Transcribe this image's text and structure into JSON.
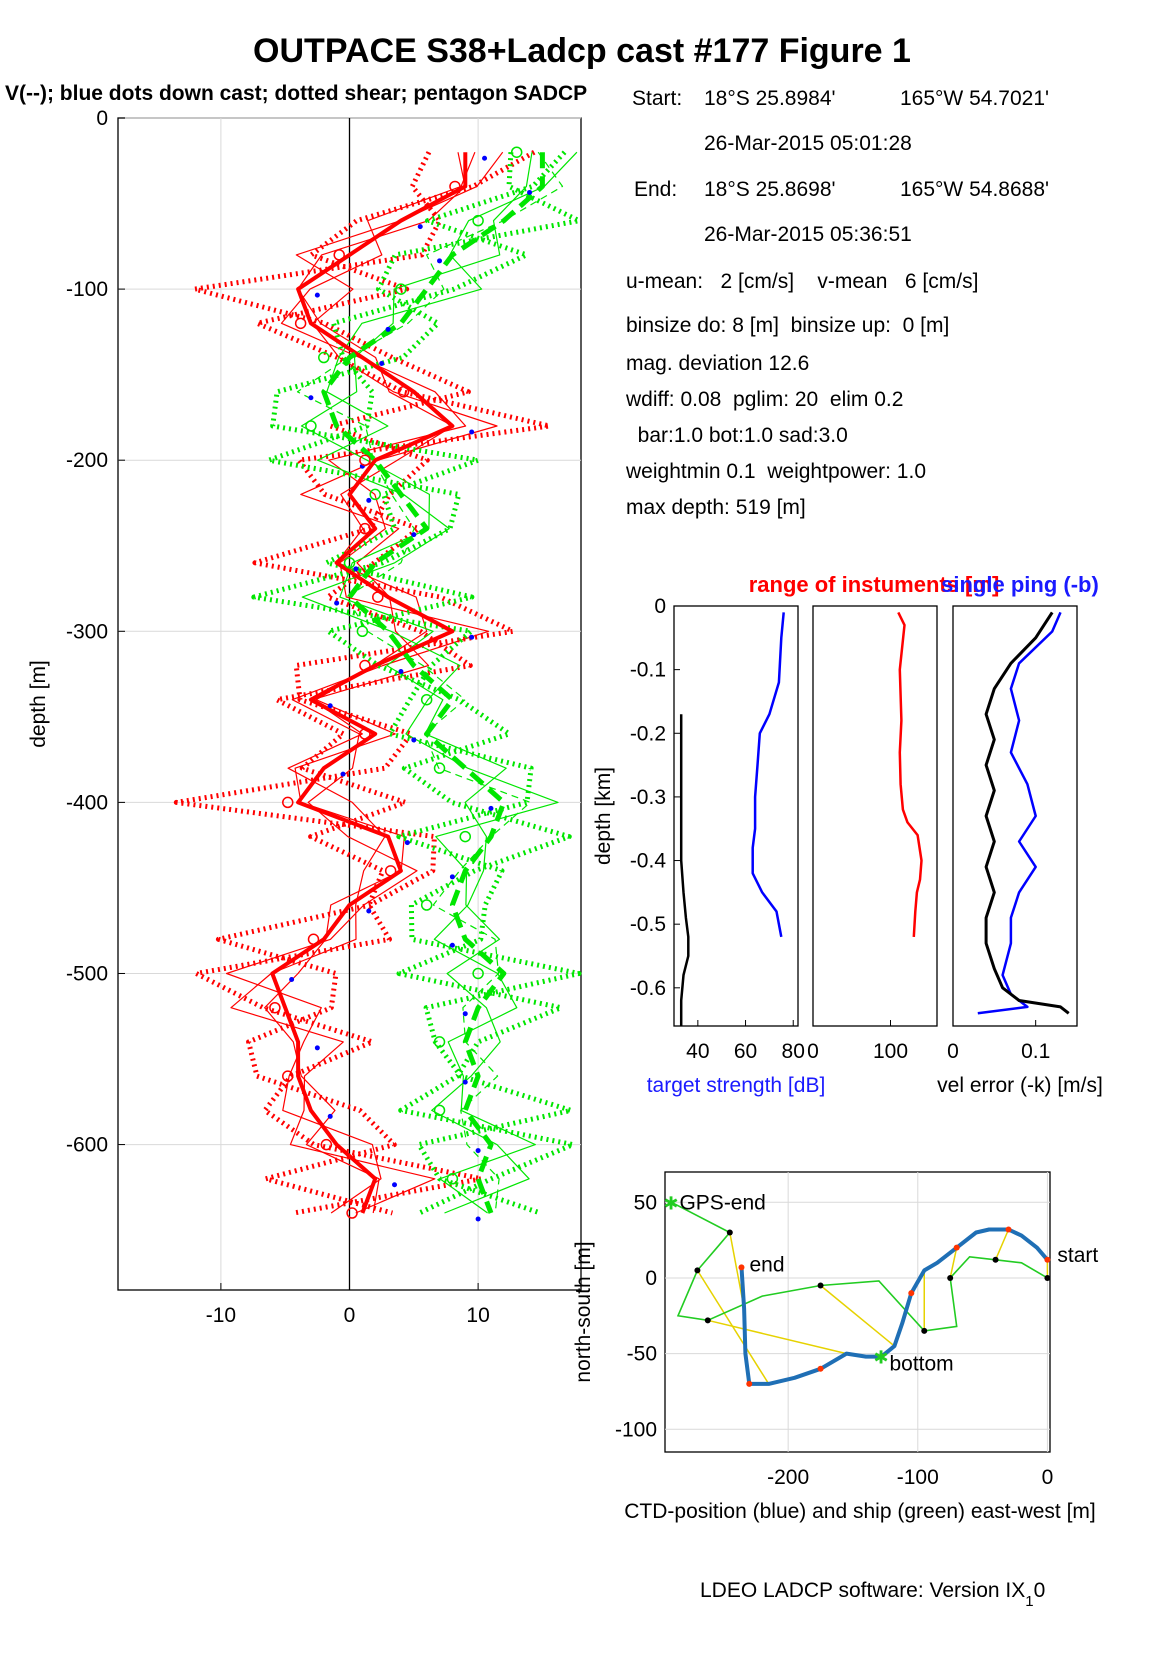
{
  "title": "OUTPACE S38+Ladcp cast #177  Figure 1",
  "subtitle": "V(--); blue dots down cast; dotted shear; pentagon SADCP",
  "footer": "LDEO LADCP software: Version IX",
  "footer_sub": "1",
  "footer_tail": "0",
  "info": {
    "start_label": "Start:",
    "start_lat": "18°S 25.8984'",
    "start_lon": "165°W 54.7021'",
    "start_time": "26-Mar-2015 05:01:28",
    "end_label": "End:",
    "end_lat": "18°S 25.8698'",
    "end_lon": "165°W 54.8688'",
    "end_time": "26-Mar-2015 05:36:51",
    "means": "u-mean:   2 [cm/s]    v-mean   6 [cm/s]",
    "binsize": "binsize do: 8 [m]  binsize up:  0 [m]",
    "magdev": "mag. deviation 12.6",
    "wdiff": "wdiff: 0.08  pglim: 20  elim 0.2",
    "bar": "  bar:1.0 bot:1.0 sad:3.0",
    "weight": "weightmin 0.1  weightpower: 1.0",
    "maxdepth": "max depth: 519 [m]"
  },
  "colors": {
    "u": "#ff0000",
    "v": "#00e600",
    "down": "#0000ff",
    "ctd": "#1f6fb5",
    "ship": "#22cc22",
    "link": "#e6d200",
    "grid": "#d9d9d9"
  },
  "chart_data": [
    {
      "id": "velocity-profile",
      "type": "line",
      "ylabel": "depth [m]",
      "xlabel": "",
      "xlim": [
        -18,
        18
      ],
      "ylim": [
        -685,
        0
      ],
      "xticks": [
        -10,
        0,
        10
      ],
      "yticks": [
        0,
        -100,
        -200,
        -300,
        -400,
        -500,
        -600
      ],
      "grid": true,
      "depth": [
        -20,
        -40,
        -60,
        -80,
        -100,
        -120,
        -140,
        -160,
        -180,
        -200,
        -220,
        -240,
        -260,
        -280,
        -300,
        -320,
        -340,
        -360,
        -380,
        -400,
        -420,
        -440,
        -460,
        -480,
        -500,
        -520,
        -540,
        -560,
        -580,
        -600,
        -620,
        -640
      ],
      "series": [
        {
          "name": "u",
          "color": "#ff0000",
          "style": "thick",
          "values": [
            9,
            9,
            4,
            0,
            -4,
            -3,
            1,
            5,
            8,
            2,
            0,
            2,
            -1,
            3,
            8,
            2,
            -3,
            2,
            -2,
            -4,
            3,
            4,
            0,
            -2,
            -6,
            -5,
            -4,
            -4,
            -3,
            -1,
            2,
            1
          ]
        },
        {
          "name": "v",
          "color": "#00e600",
          "style": "dash",
          "values": [
            15,
            15,
            12,
            8,
            6,
            4,
            0,
            -2,
            -1,
            2,
            4,
            6,
            2,
            0,
            3,
            5,
            8,
            6,
            9,
            12,
            11,
            9,
            8,
            9,
            12,
            10,
            9,
            10,
            9,
            11,
            10,
            11
          ]
        }
      ]
    },
    {
      "id": "target-strength",
      "type": "line",
      "xlabel": "target strength [dB]",
      "ylabel": "depth [km]",
      "xlim": [
        30,
        82
      ],
      "ylim": [
        -0.66,
        0
      ],
      "xticks": [
        40,
        60,
        80
      ],
      "yticks": [
        0,
        -0.1,
        -0.2,
        -0.3,
        -0.4,
        -0.5,
        -0.6
      ],
      "series": [
        {
          "name": "",
          "color": "#0000ff",
          "x": [
            76,
            75,
            74,
            70,
            66,
            65,
            64,
            64,
            63,
            63,
            63,
            67,
            73,
            75
          ],
          "y": [
            -0.01,
            -0.05,
            -0.12,
            -0.17,
            -0.2,
            -0.25,
            -0.3,
            -0.35,
            -0.38,
            -0.4,
            -0.42,
            -0.45,
            -0.48,
            -0.52
          ]
        },
        {
          "name": "",
          "color": "#000000",
          "x": [
            33,
            33,
            33,
            34,
            35,
            36,
            36,
            34,
            33,
            33
          ],
          "y": [
            -0.17,
            -0.3,
            -0.4,
            -0.45,
            -0.49,
            -0.52,
            -0.55,
            -0.58,
            -0.62,
            -0.66
          ]
        }
      ]
    },
    {
      "id": "range",
      "type": "line",
      "title": "range of instuments [m]",
      "xlim": [
        0,
        160
      ],
      "ylim": [
        -0.66,
        0
      ],
      "xticks": [
        0,
        100
      ],
      "series": [
        {
          "name": "",
          "color": "#ff0000",
          "x": [
            110,
            118,
            112,
            114,
            112,
            113,
            116,
            122,
            135,
            140,
            138,
            134,
            132,
            130
          ],
          "y": [
            -0.01,
            -0.03,
            -0.1,
            -0.18,
            -0.23,
            -0.28,
            -0.32,
            -0.34,
            -0.36,
            -0.4,
            -0.43,
            -0.45,
            -0.48,
            -0.52
          ]
        }
      ]
    },
    {
      "id": "vel-error",
      "type": "line",
      "title": "single ping (-b)",
      "xlabel": "vel error (-k) [m/s]",
      "xlim": [
        0,
        0.15
      ],
      "ylim": [
        -0.66,
        0
      ],
      "xticks": [
        0,
        0.1
      ],
      "series": [
        {
          "name": "",
          "color": "#0000ff",
          "x": [
            0.13,
            0.12,
            0.08,
            0.07,
            0.08,
            0.07,
            0.09,
            0.1,
            0.08,
            0.1,
            0.08,
            0.07,
            0.07,
            0.06,
            0.07,
            0.09,
            0.03
          ],
          "y": [
            -0.01,
            -0.04,
            -0.09,
            -0.13,
            -0.18,
            -0.23,
            -0.28,
            -0.33,
            -0.37,
            -0.41,
            -0.45,
            -0.49,
            -0.53,
            -0.58,
            -0.61,
            -0.63,
            -0.64
          ]
        },
        {
          "name": "",
          "color": "#000000",
          "x": [
            0.12,
            0.1,
            0.07,
            0.05,
            0.04,
            0.05,
            0.04,
            0.05,
            0.04,
            0.05,
            0.04,
            0.05,
            0.04,
            0.04,
            0.05,
            0.06,
            0.08,
            0.13,
            0.14
          ],
          "y": [
            -0.01,
            -0.05,
            -0.09,
            -0.13,
            -0.17,
            -0.21,
            -0.25,
            -0.29,
            -0.33,
            -0.37,
            -0.41,
            -0.45,
            -0.49,
            -0.53,
            -0.57,
            -0.6,
            -0.62,
            -0.63,
            -0.64
          ]
        }
      ]
    },
    {
      "id": "track",
      "type": "line",
      "xlabel": "CTD-position (blue) and ship (green) east-west [m]",
      "ylabel": "north-south [m]",
      "xlim": [
        -295,
        2
      ],
      "ylim": [
        -115,
        70
      ],
      "xticks": [
        -200,
        -100,
        0
      ],
      "yticks": [
        50,
        0,
        -50,
        -100
      ],
      "grid": true,
      "labels": {
        "start": "start",
        "end": "end",
        "gps_end": "GPS-end",
        "bottom": "bottom"
      },
      "series": [
        {
          "name": "",
          "color": "#1f6fb5",
          "x": [
            0,
            -8,
            -20,
            -30,
            -45,
            -55,
            -70,
            -85,
            -95,
            -105,
            -112,
            -118,
            -128,
            -140,
            -155,
            -175,
            -195,
            -215,
            -230,
            -233,
            -234,
            -236
          ],
          "y": [
            12,
            20,
            28,
            32,
            32,
            30,
            20,
            10,
            5,
            -10,
            -30,
            -45,
            -52,
            -52,
            -50,
            -60,
            -66,
            -70,
            -70,
            -50,
            -20,
            7
          ]
        },
        {
          "name": "",
          "color": "#22cc22",
          "x": [
            0,
            -20,
            -40,
            -60,
            -75,
            -70,
            -95,
            -130,
            -175,
            -220,
            -262,
            -285,
            -270,
            -255,
            -245,
            -290
          ],
          "y": [
            0,
            10,
            12,
            14,
            0,
            -32,
            -35,
            -2,
            -5,
            -12,
            -28,
            -25,
            5,
            20,
            30,
            50
          ]
        }
      ]
    }
  ]
}
